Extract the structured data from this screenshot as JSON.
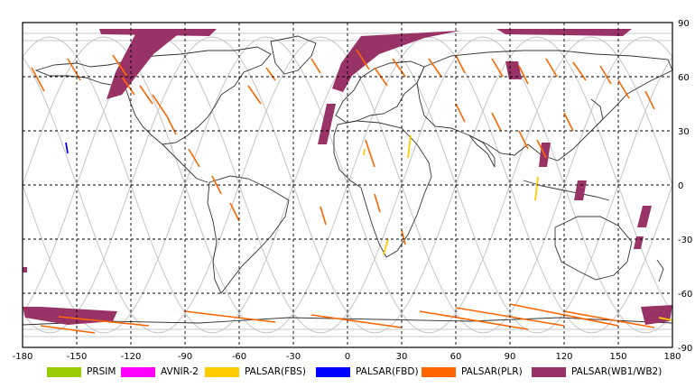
{
  "map": {
    "x_ticks": [
      "-180",
      "-150",
      "-120",
      "-90",
      "-60",
      "-30",
      "0",
      "30",
      "60",
      "90",
      "120",
      "150",
      "180"
    ],
    "y_ticks": [
      "90",
      "60",
      "30",
      "0",
      "-30",
      "-60",
      "-90"
    ],
    "colors": {
      "frame": "#000000",
      "grid": "#000000",
      "coast": "#333333",
      "orbit": "#c8c8c8"
    }
  },
  "legend": {
    "items": [
      {
        "label": "PRSIM",
        "color": "#99cc00"
      },
      {
        "label": "AVNIR-2",
        "color": "#ff00ff"
      },
      {
        "label": "PALSAR(FBS)",
        "color": "#ffcc00"
      },
      {
        "label": "PALSAR(FBD)",
        "color": "#0000ff"
      },
      {
        "label": "PALSAR(PLR)",
        "color": "#ff6600"
      },
      {
        "label": "PALSAR(WB1/WB2)",
        "color": "#993366"
      }
    ]
  },
  "observations": {
    "wb_color": "#993366",
    "plr_color": "#ff6600",
    "fbs_color": "#ffcc00",
    "fbd_color": "#0000ff"
  }
}
